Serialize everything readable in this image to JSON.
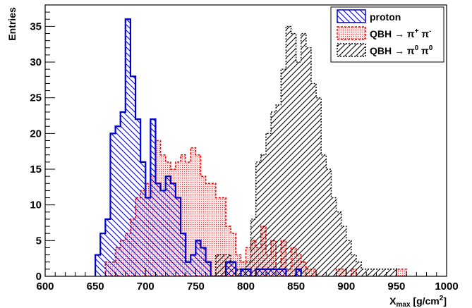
{
  "chart_data": {
    "type": "histogram",
    "title": "",
    "xlabel": "X",
    "xlabel_sub": "max",
    "xlabel_unit": " [g/cm",
    "xlabel_unit_sup": "2",
    "xlabel_unit_close": "]",
    "ylabel": "Entries",
    "xlim": [
      600,
      1000
    ],
    "ylim": [
      0,
      38
    ],
    "bin_width": 5,
    "x_ticks": [
      600,
      650,
      700,
      750,
      800,
      850,
      900,
      950,
      1000
    ],
    "y_ticks": [
      0,
      5,
      10,
      15,
      20,
      25,
      30,
      35
    ],
    "legend": {
      "placement": "top-right",
      "entries": [
        {
          "text": "proton",
          "series": 0
        },
        {
          "text": "QBH → π",
          "sup1": "+",
          "mid": " π",
          "sup2": "-",
          "series": 1
        },
        {
          "text": "QBH → π",
          "sup1": "0",
          "mid": " π",
          "sup2": "0",
          "series": 2
        }
      ]
    },
    "series": [
      {
        "label": "proton",
        "color": "#0000cc",
        "style": "hatch-down",
        "x_start": 650,
        "values": [
          3,
          6,
          8,
          20,
          21,
          23,
          36,
          28,
          22,
          16,
          11,
          22,
          13,
          12,
          14,
          13,
          11,
          6,
          2,
          3,
          5,
          4,
          2,
          0,
          0,
          0,
          2,
          2,
          0,
          1,
          1,
          0,
          1,
          1,
          1,
          1,
          1,
          1,
          0,
          0,
          1
        ]
      },
      {
        "label": "QBH → π+ π-",
        "color": "#ff0000",
        "style": "dots",
        "x_start": 660,
        "values": [
          2,
          2,
          4,
          5,
          6,
          8,
          11,
          12,
          13,
          14,
          19,
          17,
          16,
          15,
          16,
          17,
          16,
          18,
          17,
          14,
          13,
          13,
          11,
          11,
          7,
          6,
          3,
          2,
          4,
          5,
          4,
          7,
          3,
          5,
          1,
          5,
          1,
          4,
          3,
          2,
          1,
          1,
          0,
          0,
          0,
          0,
          1,
          1,
          0,
          1,
          0,
          0,
          0,
          0,
          0,
          0,
          0,
          0,
          1,
          1
        ]
      },
      {
        "label": "QBH → π0 π0",
        "color": "#000000",
        "style": "hatch-up",
        "x_start": 770,
        "values": [
          3,
          3,
          3,
          2,
          1,
          1,
          2,
          8,
          16,
          17,
          20,
          23,
          24,
          29,
          35,
          34,
          30,
          34,
          32,
          27,
          25,
          17,
          15,
          11,
          9,
          7,
          5,
          3,
          2,
          1,
          1,
          1,
          1,
          1,
          1,
          1
        ]
      }
    ]
  }
}
